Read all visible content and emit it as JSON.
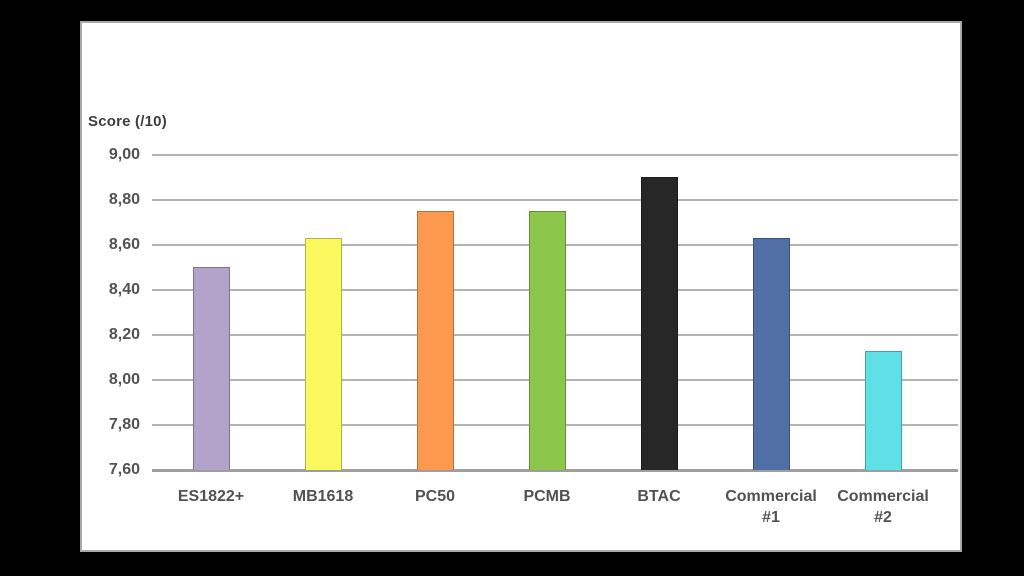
{
  "page": {
    "background_color": "#000000",
    "panel": {
      "background_color": "#ffffff",
      "border_color": "#a9a9a9"
    }
  },
  "chart_data": {
    "type": "bar",
    "ylabel": "Score (/10)",
    "categories": [
      "ES1822+",
      "MB1618",
      "PC50",
      "PCMB",
      "BTAC",
      "Commercial #1",
      "Commercial #2"
    ],
    "values": [
      8.5,
      8.63,
      8.75,
      8.75,
      8.9,
      8.63,
      8.13
    ],
    "bar_colors": [
      "#b1a3c9",
      "#f9f95f",
      "#fb9a4f",
      "#8cc64a",
      "#272727",
      "#4f6fa5",
      "#5fe0e6"
    ],
    "ylim": [
      7.6,
      9.0
    ],
    "ytick_interval": 0.2,
    "ytick_labels": [
      "9,00",
      "8,80",
      "8,60",
      "8,40",
      "8,20",
      "8,00",
      "7,80",
      "7,60"
    ],
    "decimal_separator": ",",
    "grid": true,
    "legend_position": "none",
    "gridline_color": "#b3b3b3",
    "axis_line_color": "#9e9e9e",
    "text_color": "#525252"
  }
}
